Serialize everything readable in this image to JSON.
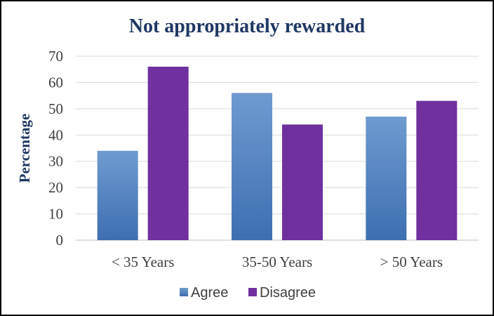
{
  "chart_data": {
    "type": "bar",
    "title": "Not appropriately  rewarded",
    "xlabel": "",
    "ylabel": "Percentage",
    "ylim": [
      0,
      70
    ],
    "yticks": [
      0,
      10,
      20,
      30,
      40,
      50,
      60,
      70
    ],
    "categories": [
      "< 35 Years",
      "35-50 Years",
      "> 50 Years"
    ],
    "series": [
      {
        "name": "Agree",
        "values": [
          34,
          56,
          47
        ],
        "color": "#4a7ebf"
      },
      {
        "name": "Disagree",
        "values": [
          66,
          44,
          53
        ],
        "color": "#7030a0"
      }
    ],
    "grid": true,
    "legend": "bottom"
  }
}
